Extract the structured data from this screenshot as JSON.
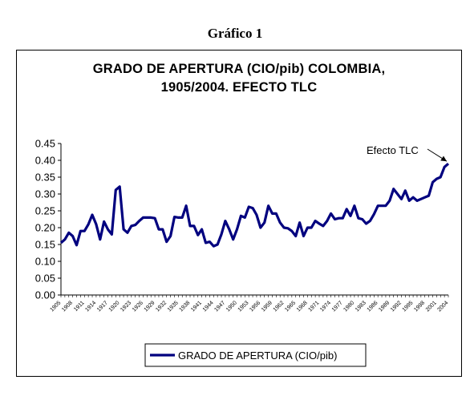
{
  "caption": "Gráfico 1",
  "chart_data": {
    "type": "line",
    "title_line1": "GRADO DE APERTURA (CIO/pib) COLOMBIA,",
    "title_line2": "1905/2004. EFECTO TLC",
    "ylim": [
      0,
      0.45
    ],
    "yticks": [
      "0.00",
      "0.05",
      "0.10",
      "0.15",
      "0.20",
      "0.25",
      "0.30",
      "0.35",
      "0.40",
      "0.45"
    ],
    "grid": false,
    "legend_position": "bottom",
    "series": [
      {
        "name": "GRADO DE APERTURA (CIO/pib)",
        "color": "#00007f",
        "x": [
          1905,
          1906,
          1907,
          1908,
          1909,
          1910,
          1911,
          1912,
          1913,
          1914,
          1915,
          1916,
          1917,
          1918,
          1919,
          1920,
          1921,
          1922,
          1923,
          1924,
          1925,
          1926,
          1927,
          1928,
          1929,
          1930,
          1931,
          1932,
          1933,
          1934,
          1935,
          1936,
          1937,
          1938,
          1939,
          1940,
          1941,
          1942,
          1943,
          1944,
          1945,
          1946,
          1947,
          1948,
          1949,
          1950,
          1951,
          1952,
          1953,
          1954,
          1955,
          1956,
          1957,
          1958,
          1959,
          1960,
          1961,
          1962,
          1963,
          1964,
          1965,
          1966,
          1967,
          1968,
          1969,
          1970,
          1971,
          1972,
          1973,
          1974,
          1975,
          1976,
          1977,
          1978,
          1979,
          1980,
          1981,
          1982,
          1983,
          1984,
          1985,
          1986,
          1987,
          1988,
          1989,
          1990,
          1991,
          1992,
          1993,
          1994,
          1995,
          1996,
          1997,
          1998,
          1999,
          2000,
          2001,
          2002,
          2003,
          2004
        ],
        "values": [
          0.155,
          0.165,
          0.185,
          0.175,
          0.148,
          0.19,
          0.19,
          0.21,
          0.238,
          0.21,
          0.165,
          0.218,
          0.195,
          0.18,
          0.312,
          0.322,
          0.195,
          0.185,
          0.205,
          0.208,
          0.22,
          0.23,
          0.23,
          0.23,
          0.228,
          0.195,
          0.195,
          0.158,
          0.175,
          0.232,
          0.23,
          0.23,
          0.265,
          0.205,
          0.205,
          0.178,
          0.195,
          0.155,
          0.158,
          0.145,
          0.15,
          0.18,
          0.22,
          0.195,
          0.165,
          0.195,
          0.235,
          0.23,
          0.262,
          0.258,
          0.238,
          0.2,
          0.215,
          0.265,
          0.242,
          0.242,
          0.215,
          0.2,
          0.198,
          0.19,
          0.175,
          0.215,
          0.175,
          0.2,
          0.2,
          0.22,
          0.212,
          0.205,
          0.22,
          0.242,
          0.225,
          0.228,
          0.228,
          0.255,
          0.235,
          0.265,
          0.228,
          0.225,
          0.212,
          0.22,
          0.24,
          0.265,
          0.265,
          0.265,
          0.28,
          0.315,
          0.3,
          0.285,
          0.31,
          0.28,
          0.29,
          0.28,
          0.285,
          0.29,
          0.295,
          0.335,
          0.345,
          0.35,
          0.38,
          0.39
        ]
      }
    ],
    "annotation": {
      "text": "Efecto TLC",
      "x": 2004,
      "y": 0.39
    }
  }
}
